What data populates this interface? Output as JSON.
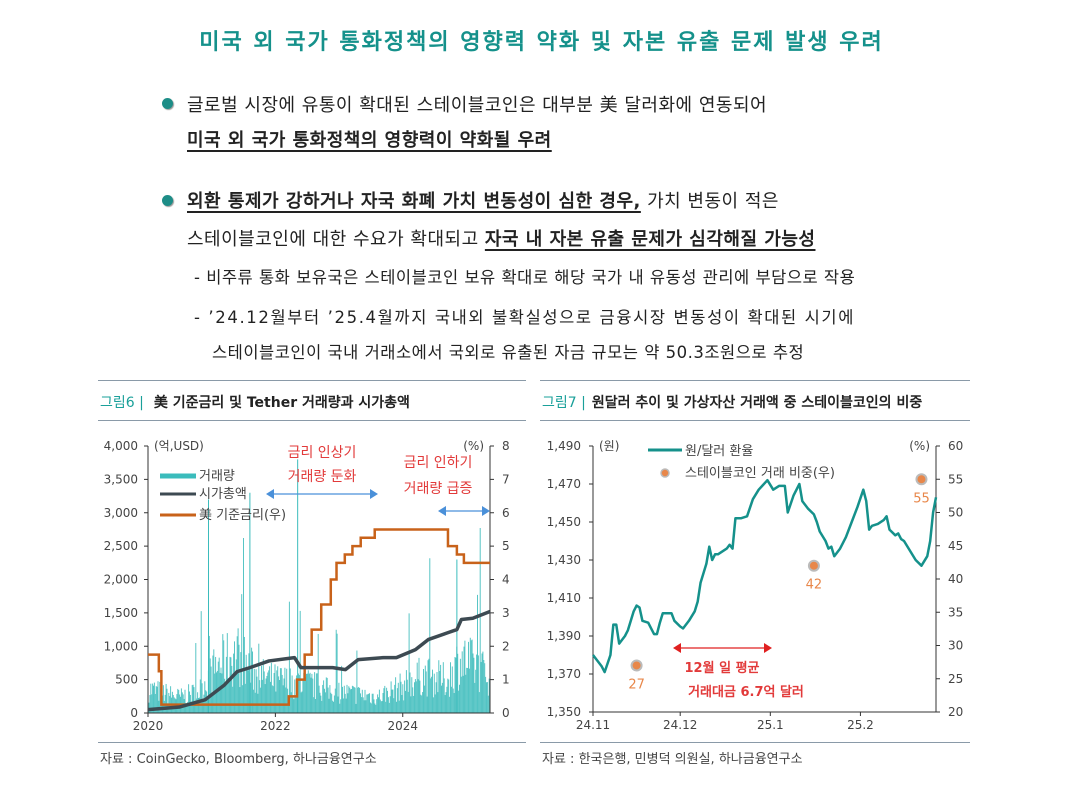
{
  "title": "미국 외 국가 통화정책의 영향력 약화 및 자본 유출 문제 발생 우려",
  "bullets": [
    {
      "line1": "글로벌 시장에 유통이 확대된 스테이블코인은 대부분 美 달러화에 연동되어",
      "line2_bold": "미국 외 국가 통화정책의 영향력이 약화될 우려"
    },
    {
      "line1_bold": "외환 통제가 강하거나 자국 화폐 가치 변동성이 심한 경우,",
      "line1_rest": " 가치 변동이 적은",
      "line2_plain": "스테이블코인에 대한 수요가 확대되고 ",
      "line2_bold": "자국 내 자본 유출 문제가 심각해질 가능성"
    }
  ],
  "subs": [
    "- 비주류 통화 보유국은 스테이블코인 보유 확대로 해당 국가 내 유동성 관리에 부담으로 작용",
    "- ’24.12월부터 ’25.4월까지 국내외 불확실성으로 금융시장 변동성이 확대된 시기에",
    "스테이블코인이 국내 거래소에서 국외로 유출된 자금 규모는 약 50.3조원으로 추정"
  ],
  "fig6": {
    "num": "그림6 |",
    "title": "美 기준금리 및 Tether 거래량과 시가총액",
    "source": "자료 : CoinGecko, Bloomberg, 하나금융연구소"
  },
  "fig7": {
    "num": "그림7 |",
    "title": "원달러 추이 및 가상자산 거래액 중 스테이블코인의 비중",
    "source": "자료 : 한국은행, 민병덕 의원실, 하나금융연구소"
  },
  "colors": {
    "teal": "#15918b",
    "volume": "#3bbcbc",
    "mcap": "#3d4a52",
    "rate": "#c8621a",
    "annot": "#e23a3a",
    "arrow": "#4a90d9",
    "dot": "#e8874a"
  },
  "chart_data": [
    {
      "type": "bar+line",
      "title": "美 기준금리 및 Tether 거래량과 시가총액",
      "y_left_unit": "(억,USD)",
      "y_right_unit": "(%)",
      "y_left_ticks": [
        "4,000",
        "3,500",
        "3,000",
        "2,500",
        "2,000",
        "1,500",
        "1,000",
        "500",
        "0"
      ],
      "y_right_ticks": [
        "8",
        "7",
        "6",
        "5",
        "4",
        "3",
        "2",
        "1",
        "0"
      ],
      "x_ticks": [
        "2020",
        "2022",
        "2024"
      ],
      "ylim_left": [
        0,
        4000
      ],
      "ylim_right": [
        0,
        8
      ],
      "xlim": [
        2020,
        2025.37
      ],
      "legend": [
        "거래량",
        "시가총액",
        "美 기준금리(우)"
      ],
      "annotations": [
        {
          "l1": "금리 인상기",
          "l2": "거래량 둔화"
        },
        {
          "l1": "금리 인하기",
          "l2": "거래량 급증"
        }
      ],
      "rate": [
        [
          2020,
          1.75
        ],
        [
          2020.17,
          1.25
        ],
        [
          2020.21,
          0.25
        ],
        [
          2022.21,
          0.5
        ],
        [
          2022.34,
          1.0
        ],
        [
          2022.46,
          1.75
        ],
        [
          2022.57,
          2.5
        ],
        [
          2022.72,
          3.25
        ],
        [
          2022.87,
          4.0
        ],
        [
          2022.96,
          4.5
        ],
        [
          2023.09,
          4.75
        ],
        [
          2023.21,
          5.0
        ],
        [
          2023.34,
          5.25
        ],
        [
          2023.56,
          5.5
        ],
        [
          2024.71,
          5.0
        ],
        [
          2024.85,
          4.75
        ],
        [
          2024.96,
          4.5
        ],
        [
          2025.37,
          4.5
        ]
      ],
      "market_cap": [
        [
          2020,
          50
        ],
        [
          2020.5,
          90
        ],
        [
          2020.9,
          200
        ],
        [
          2021.2,
          420
        ],
        [
          2021.4,
          620
        ],
        [
          2021.6,
          680
        ],
        [
          2021.9,
          780
        ],
        [
          2022.3,
          830
        ],
        [
          2022.4,
          680
        ],
        [
          2022.9,
          680
        ],
        [
          2023.1,
          650
        ],
        [
          2023.3,
          800
        ],
        [
          2023.7,
          830
        ],
        [
          2023.9,
          830
        ],
        [
          2024.2,
          950
        ],
        [
          2024.4,
          1100
        ],
        [
          2024.7,
          1200
        ],
        [
          2024.85,
          1250
        ],
        [
          2024.92,
          1400
        ],
        [
          2025.1,
          1420
        ],
        [
          2025.37,
          1520
        ]
      ],
      "volume_typical": [
        [
          2020,
          450
        ],
        [
          2020.5,
          300
        ],
        [
          2020.8,
          400
        ],
        [
          2021.1,
          900
        ],
        [
          2021.4,
          1100
        ],
        [
          2021.7,
          700
        ],
        [
          2022.0,
          600
        ],
        [
          2022.5,
          550
        ],
        [
          2022.9,
          400
        ],
        [
          2023.3,
          350
        ],
        [
          2023.6,
          300
        ],
        [
          2024.0,
          500
        ],
        [
          2024.3,
          700
        ],
        [
          2024.7,
          600
        ],
        [
          2024.9,
          1000
        ],
        [
          2025.1,
          900
        ],
        [
          2025.37,
          700
        ]
      ]
    },
    {
      "type": "line+scatter",
      "title": "원달러 추이 및 가상자산 거래액 중 스테이블코인의 비중",
      "y_left_unit": "(원)",
      "y_right_unit": "(%)",
      "y_left_ticks": [
        "1,490",
        "1,470",
        "1,450",
        "1,430",
        "1,410",
        "1,390",
        "1,370",
        "1,350"
      ],
      "y_right_ticks": [
        "60",
        "55",
        "50",
        "45",
        "40",
        "35",
        "30",
        "25",
        "20"
      ],
      "x_ticks": [
        "24.11",
        "24.12",
        "25.1",
        "25.2"
      ],
      "ylim_left": [
        1350,
        1490
      ],
      "ylim_right": [
        20,
        60
      ],
      "legend": [
        "원/달러 환율",
        "스테이블코인 거래 비중(우)"
      ],
      "annotation": {
        "l1": "12월 일 평균",
        "l2": "거래대금 6.7억 달러"
      },
      "x_unit": "days since 2024-11-01",
      "fx": [
        [
          0,
          1380
        ],
        [
          3,
          1374
        ],
        [
          4,
          1371
        ],
        [
          6,
          1380
        ],
        [
          7,
          1396
        ],
        [
          8,
          1396
        ],
        [
          9,
          1386
        ],
        [
          11,
          1390
        ],
        [
          12,
          1393
        ],
        [
          14,
          1403
        ],
        [
          15,
          1406
        ],
        [
          16,
          1405
        ],
        [
          17,
          1398
        ],
        [
          19,
          1397
        ],
        [
          20,
          1394
        ],
        [
          21,
          1391
        ],
        [
          22,
          1391
        ],
        [
          23,
          1397
        ],
        [
          24,
          1402
        ],
        [
          27,
          1402
        ],
        [
          28,
          1398
        ],
        [
          30,
          1395
        ],
        [
          31,
          1394
        ],
        [
          33,
          1398
        ],
        [
          35,
          1403
        ],
        [
          36,
          1408
        ],
        [
          37,
          1418
        ],
        [
          39,
          1428
        ],
        [
          40,
          1437
        ],
        [
          41,
          1430
        ],
        [
          42,
          1433
        ],
        [
          43,
          1433
        ],
        [
          46,
          1436
        ],
        [
          47,
          1438
        ],
        [
          48,
          1436
        ],
        [
          49,
          1452
        ],
        [
          51,
          1452
        ],
        [
          53,
          1453
        ],
        [
          55,
          1462
        ],
        [
          57,
          1467
        ],
        [
          60,
          1472
        ],
        [
          62,
          1467
        ],
        [
          64,
          1469
        ],
        [
          66,
          1469
        ],
        [
          67,
          1455
        ],
        [
          69,
          1464
        ],
        [
          71,
          1470
        ],
        [
          72,
          1461
        ],
        [
          74,
          1457
        ],
        [
          76,
          1454
        ],
        [
          77,
          1450
        ],
        [
          78,
          1445
        ],
        [
          80,
          1440
        ],
        [
          81,
          1436
        ],
        [
          82,
          1437
        ],
        [
          83,
          1432
        ],
        [
          85,
          1436
        ],
        [
          87,
          1442
        ],
        [
          89,
          1450
        ],
        [
          91,
          1458
        ],
        [
          93,
          1467
        ],
        [
          94,
          1461
        ],
        [
          95,
          1446
        ],
        [
          96,
          1448
        ],
        [
          98,
          1449
        ],
        [
          100,
          1451
        ],
        [
          101,
          1453
        ],
        [
          102,
          1446
        ],
        [
          104,
          1443
        ],
        [
          105,
          1444
        ],
        [
          106,
          1441
        ],
        [
          107,
          1440
        ],
        [
          109,
          1435
        ],
        [
          111,
          1430
        ],
        [
          113,
          1427
        ],
        [
          115,
          1432
        ],
        [
          116,
          1440
        ],
        [
          117,
          1455
        ],
        [
          118,
          1463
        ]
      ],
      "share": [
        {
          "day": 15,
          "value": 27,
          "label": "27"
        },
        {
          "day": 76,
          "value": 42,
          "label": "42"
        },
        {
          "day": 113,
          "value": 55,
          "label": "55"
        }
      ]
    }
  ]
}
